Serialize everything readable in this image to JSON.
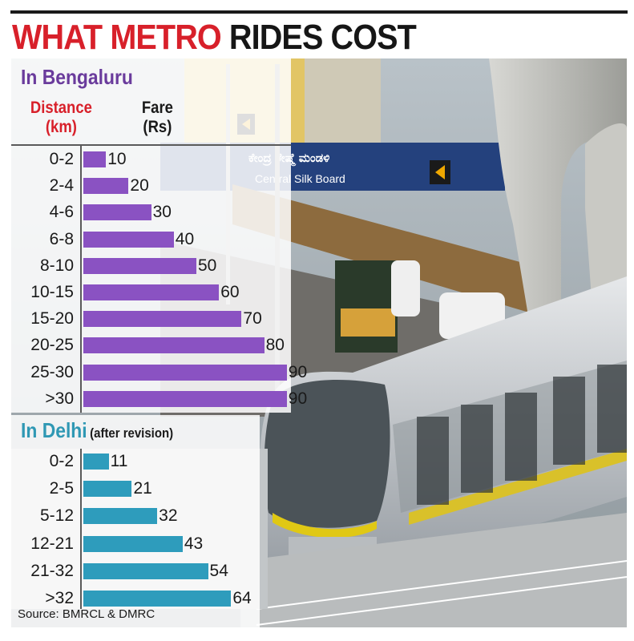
{
  "title": {
    "part1": "WHAT METRO",
    "part2": "RIDES COST"
  },
  "chart_data": [
    {
      "type": "bar",
      "title": "In Bengaluru",
      "xlabel": "Fare (Rs)",
      "ylabel": "Distance (km)",
      "categories": [
        "0-2",
        "2-4",
        "4-6",
        "6-8",
        "8-10",
        "10-15",
        "15-20",
        "20-25",
        "25-30",
        ">30"
      ],
      "values": [
        10,
        20,
        30,
        40,
        50,
        60,
        70,
        80,
        90,
        90
      ],
      "color": "#8a52c2",
      "orientation": "horizontal"
    },
    {
      "type": "bar",
      "title": "In Delhi",
      "subtitle": "(after revision)",
      "categories": [
        "0-2",
        "2-5",
        "5-12",
        "12-21",
        "21-32",
        ">32"
      ],
      "values": [
        11,
        21,
        32,
        43,
        54,
        64
      ],
      "color": "#2e9cbc",
      "orientation": "horizontal"
    }
  ],
  "headers": {
    "distance_line1": "Distance",
    "distance_line2": "(km)",
    "fare_line1": "Fare",
    "fare_line2": "(Rs)"
  },
  "photo_sign": "Central Silk Board",
  "source": "Source: BMRCL & DMRC"
}
